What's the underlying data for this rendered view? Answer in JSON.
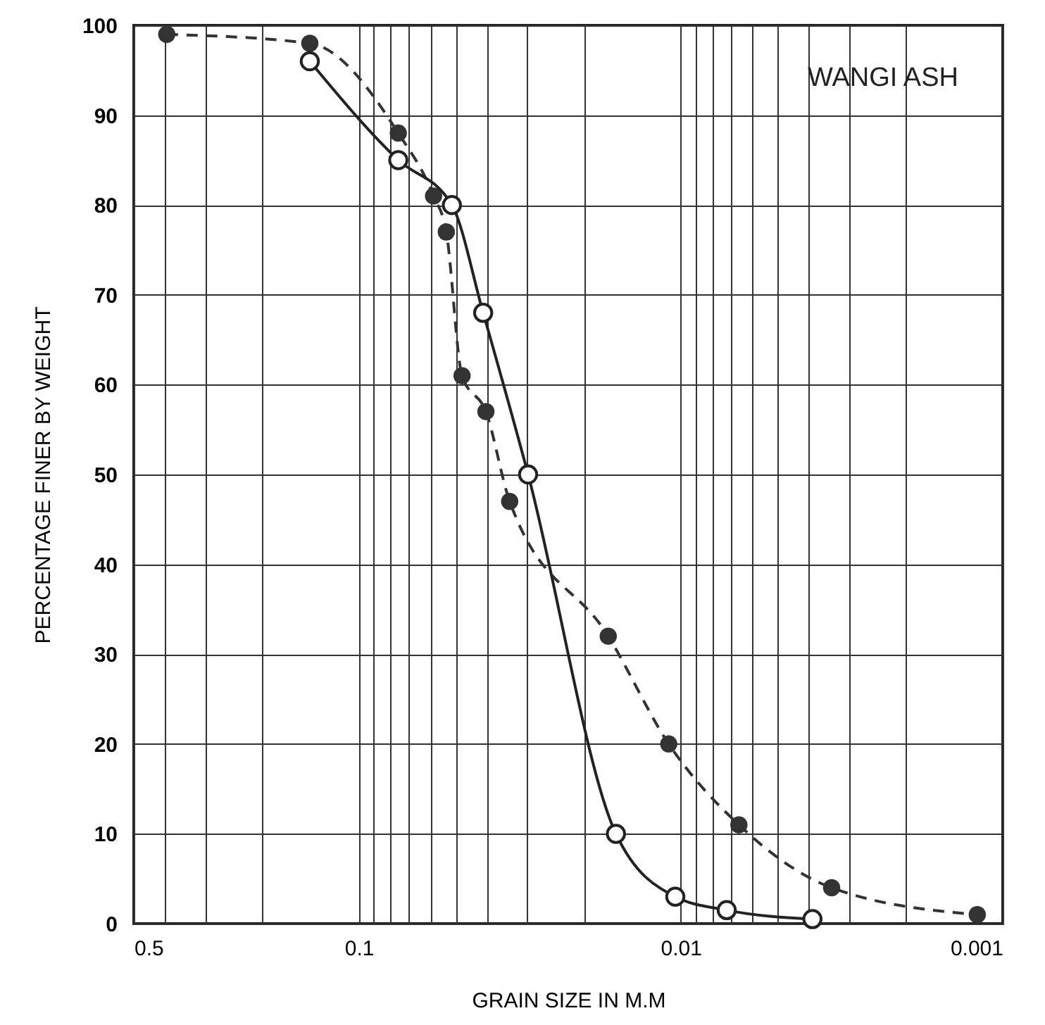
{
  "chart_data": {
    "type": "line",
    "title": "WANGI ASH",
    "xlabel": "GRAIN SIZE IN M.M",
    "ylabel": "PERCENTAGE FINER BY WEIGHT",
    "log": "x",
    "grid": true,
    "marker": "circle",
    "xlim": [
      0.5,
      0.001
    ],
    "xticks": [
      0.5,
      {
        "value": 0.4,
        "label": null
      },
      {
        "value": 0.3,
        "label": null
      },
      {
        "value": 0.2,
        "label": null
      },
      0.1,
      {
        "value": 0.09,
        "label": null
      },
      {
        "value": 0.08,
        "label": null
      },
      {
        "value": 0.07,
        "label": null
      },
      {
        "value": 0.06,
        "label": null
      },
      {
        "value": 0.05,
        "label": null
      },
      {
        "value": 0.04,
        "label": null
      },
      {
        "value": 0.03,
        "label": null
      },
      {
        "value": 0.02,
        "label": null
      },
      0.01,
      {
        "value": 0.009,
        "label": null
      },
      {
        "value": 0.008,
        "label": null
      },
      {
        "value": 0.007,
        "label": null
      },
      {
        "value": 0.006,
        "label": null
      },
      {
        "value": 0.005,
        "label": null
      },
      {
        "value": 0.004,
        "label": null
      },
      {
        "value": 0.003,
        "label": null
      },
      {
        "value": 0.002,
        "label": null
      },
      0.001
    ],
    "ylim": [
      0,
      100
    ],
    "yticks": [
      0,
      10,
      20,
      30,
      40,
      50,
      60,
      70,
      80,
      90,
      100
    ],
    "series": [
      {
        "color": "#333333",
        "line_style": "dashed",
        "x": [
          0.395,
          0.142,
          0.0754,
          0.0586,
          0.0535,
          0.0478,
          0.0403,
          0.034,
          0.0168,
          0.0109,
          0.0066,
          0.0034,
          0.0012
        ],
        "values": [
          99,
          98,
          88,
          81,
          77,
          61,
          57,
          47,
          32,
          20,
          11,
          4,
          1
        ]
      },
      {
        "color": "#222222",
        "line_style": "solid",
        "x": [
          0.142,
          0.0754,
          0.0514,
          0.0411,
          0.0298,
          0.0159,
          0.0104,
          0.0072,
          0.0039
        ],
        "values": [
          96,
          85,
          80,
          68,
          50,
          10,
          3,
          1.5,
          0.5
        ]
      }
    ]
  }
}
